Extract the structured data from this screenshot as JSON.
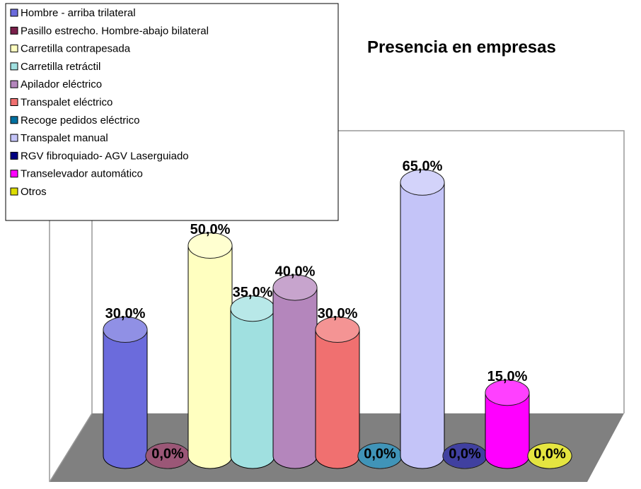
{
  "chart_data": {
    "type": "bar",
    "title": "Presencia en empresas",
    "categories": [
      "Hombre - arriba trilateral",
      "Pasillo estrecho. Hombre-abajo bilateral",
      "Carretilla contrapesada",
      "Carretilla retráctil",
      "Apilador eléctrico",
      "Transpalet eléctrico",
      "Recoge pedidos eléctrico",
      "Transpalet manual",
      "RGV fibroquiado- AGV Laserguiado",
      "Transelevador automático",
      "Otros"
    ],
    "values": [
      30,
      0,
      50,
      35,
      40,
      30,
      0,
      65,
      0,
      15,
      0
    ],
    "value_labels": [
      "30,0%",
      "0,0%",
      "50,0%",
      "35,0%",
      "40,0%",
      "30,0%",
      "0,0%",
      "65,0%",
      "0,0%",
      "15,0%",
      "0,0%"
    ],
    "colors": [
      "#6b6bdc",
      "#7a1f4a",
      "#ffffc0",
      "#a0e0e0",
      "#b486bc",
      "#f07070",
      "#0070a0",
      "#c4c4f8",
      "#000080",
      "#ff00ff",
      "#dcdc00"
    ],
    "legend": "top-left"
  }
}
